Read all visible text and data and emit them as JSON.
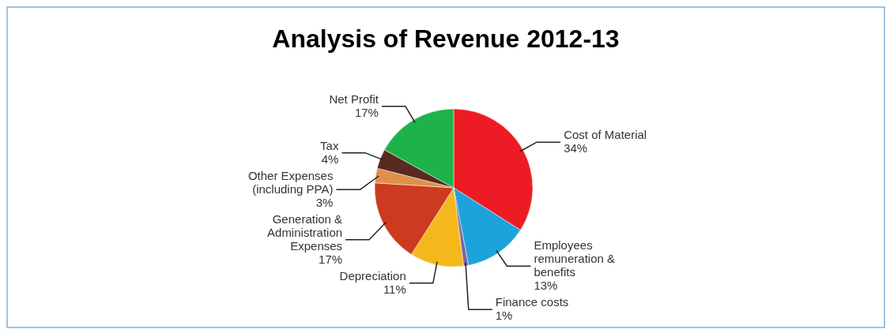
{
  "chart_data": {
    "type": "pie",
    "title": "Analysis of Revenue 2012-13",
    "categories": [
      "Cost of Material",
      "Employees remuneration & benefits",
      "Finance costs",
      "Depreciation",
      "Generation & Administration Expenses",
      "Other Expenses (including PPA)",
      "Tax",
      "Net Profit"
    ],
    "values": [
      34,
      13,
      1,
      11,
      17,
      3,
      4,
      17
    ],
    "value_labels": [
      "34%",
      "13%",
      "1%",
      "11%",
      "17%",
      "3%",
      "4%",
      "17%"
    ],
    "colors": [
      "#ed1c24",
      "#1ca3dc",
      "#8064a2",
      "#f5b81c",
      "#cc3a1f",
      "#e0904a",
      "#5a2a20",
      "#1db34a"
    ]
  }
}
